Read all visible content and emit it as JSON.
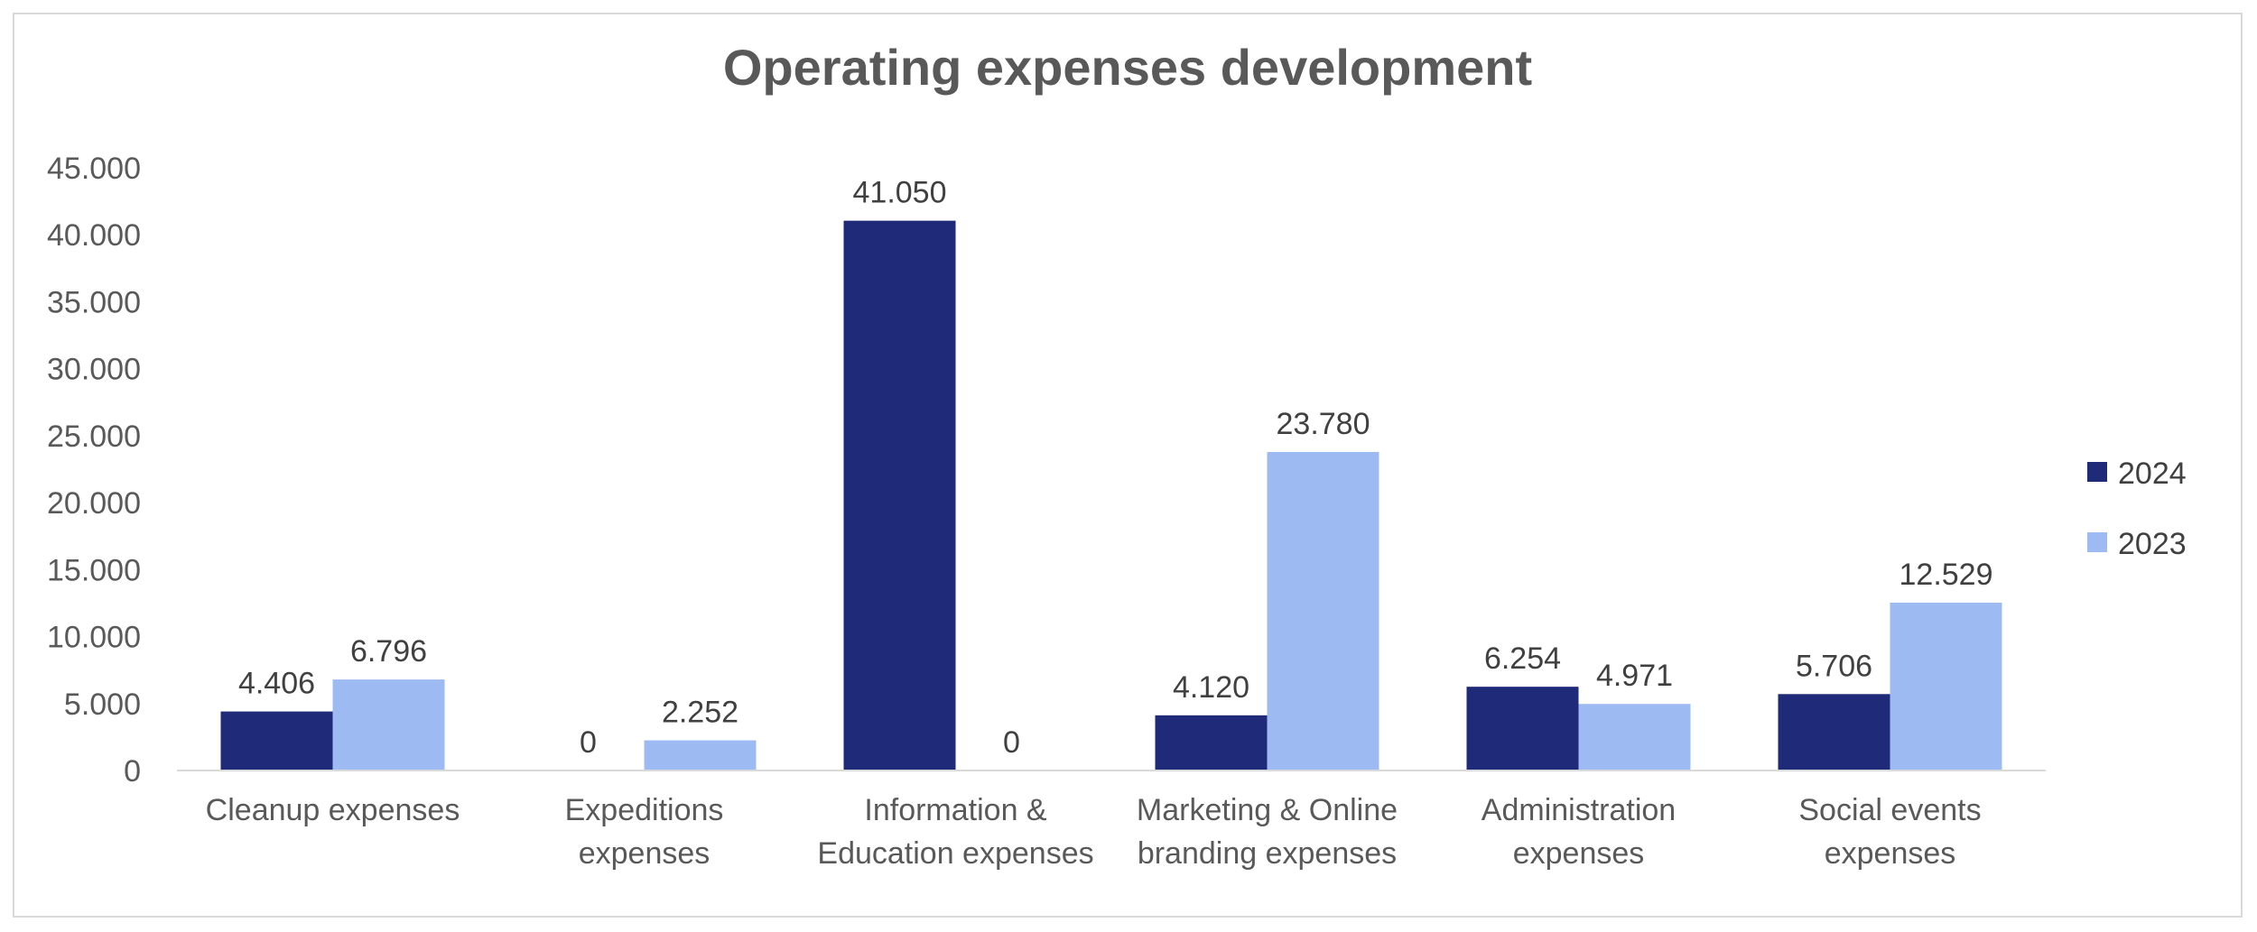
{
  "chart_data": {
    "type": "bar",
    "title": "Operating expenses development",
    "categories": [
      [
        "Cleanup expenses"
      ],
      [
        "Expeditions",
        "expenses"
      ],
      [
        "Information &",
        "Education expenses"
      ],
      [
        "Marketing & Online",
        "branding expenses"
      ],
      [
        "Administration",
        "expenses"
      ],
      [
        "Social events",
        "expenses"
      ]
    ],
    "series": [
      {
        "name": "2024",
        "color": "#1f2a78",
        "values": [
          4406,
          0,
          41050,
          4120,
          6254,
          5706
        ],
        "labels": [
          "4.406",
          "0",
          "41.050",
          "4.120",
          "6.254",
          "5.706"
        ]
      },
      {
        "name": "2023",
        "color": "#9dbbf2",
        "values": [
          6796,
          2252,
          0,
          23780,
          4971,
          12529
        ],
        "labels": [
          "6.796",
          "2.252",
          "0",
          "23.780",
          "4.971",
          "12.529"
        ]
      }
    ],
    "ylim": [
      0,
      45000
    ],
    "yticks": [
      0,
      5000,
      10000,
      15000,
      20000,
      25000,
      30000,
      35000,
      40000,
      45000
    ],
    "ytick_labels": [
      "0",
      "5.000",
      "10.000",
      "15.000",
      "20.000",
      "25.000",
      "30.000",
      "35.000",
      "40.000",
      "45.000"
    ],
    "grid": false,
    "legend": "right",
    "xlabel": "",
    "ylabel": ""
  }
}
